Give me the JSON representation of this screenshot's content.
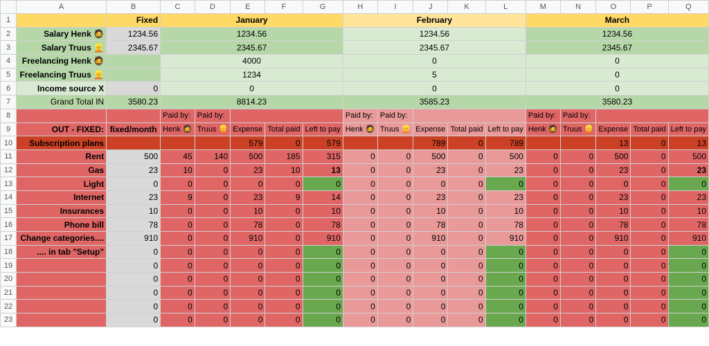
{
  "colHeaders": [
    "",
    "A",
    "B",
    "C",
    "D",
    "E",
    "F",
    "G",
    "H",
    "I",
    "J",
    "K",
    "L",
    "M",
    "N",
    "O",
    "P",
    "Q"
  ],
  "row1": {
    "fixed": "Fixed",
    "months": [
      "January",
      "February",
      "March"
    ]
  },
  "income": [
    {
      "label": "Salary Henk 🧔",
      "fixed": "1234.56",
      "months": [
        "1234.56",
        "1234.56",
        "1234.56"
      ]
    },
    {
      "label": "Salary Truus 👱",
      "fixed": "2345.67",
      "months": [
        "2345.67",
        "2345.67",
        "2345.67"
      ]
    },
    {
      "label": "Freelancing Henk 🧔",
      "fixed": "",
      "months": [
        "4000",
        "0",
        "0"
      ]
    },
    {
      "label": "Freelancing Truus 👱",
      "fixed": "",
      "months": [
        "1234",
        "5",
        "0"
      ]
    },
    {
      "label": "Income source X",
      "fixed": "0",
      "months": [
        "0",
        "0",
        "0"
      ]
    }
  ],
  "grandTotal": {
    "label": "Grand Total IN",
    "fixed": "3580.23",
    "months": [
      "8814.23",
      "3585.23",
      "3580.23"
    ]
  },
  "row8": {
    "paidBy": "Paid by:"
  },
  "row9": {
    "label": "OUT - FIXED:",
    "fixed": "fixed/month",
    "henk": "Henk 🧔",
    "truus": "Truus 👱",
    "expense": "Expense",
    "totalPaid": "Total paid",
    "leftToPay": "Left to pay"
  },
  "subscription": {
    "label": "Subscription plans",
    "months": [
      [
        "579",
        "0",
        "579"
      ],
      [
        "789",
        "0",
        "789"
      ],
      [
        "13",
        "0",
        "13"
      ]
    ]
  },
  "expenses": [
    {
      "label": "Rent",
      "fixed": "500",
      "m": [
        [
          "45",
          "140",
          "500",
          "185",
          "315"
        ],
        [
          "0",
          "0",
          "500",
          "0",
          "500"
        ],
        [
          "0",
          "0",
          "500",
          "0",
          "500"
        ]
      ]
    },
    {
      "label": "Gas",
      "fixed": "23",
      "m": [
        [
          "10",
          "0",
          "23",
          "10",
          "13"
        ],
        [
          "0",
          "0",
          "23",
          "0",
          "23"
        ],
        [
          "0",
          "0",
          "23",
          "0",
          "23"
        ]
      ]
    },
    {
      "label": "Light",
      "fixed": "0",
      "m": [
        [
          "0",
          "0",
          "0",
          "0",
          "0"
        ],
        [
          "0",
          "0",
          "0",
          "0",
          "0"
        ],
        [
          "0",
          "0",
          "0",
          "0",
          "0"
        ]
      ]
    },
    {
      "label": "Internet",
      "fixed": "23",
      "m": [
        [
          "9",
          "0",
          "23",
          "9",
          "14"
        ],
        [
          "0",
          "0",
          "23",
          "0",
          "23"
        ],
        [
          "0",
          "0",
          "23",
          "0",
          "23"
        ]
      ]
    },
    {
      "label": "Insurances",
      "fixed": "10",
      "m": [
        [
          "0",
          "0",
          "10",
          "0",
          "10"
        ],
        [
          "0",
          "0",
          "10",
          "0",
          "10"
        ],
        [
          "0",
          "0",
          "10",
          "0",
          "10"
        ]
      ]
    },
    {
      "label": "Phone bill",
      "fixed": "78",
      "m": [
        [
          "0",
          "0",
          "78",
          "0",
          "78"
        ],
        [
          "0",
          "0",
          "78",
          "0",
          "78"
        ],
        [
          "0",
          "0",
          "78",
          "0",
          "78"
        ]
      ]
    },
    {
      "label": "Change categories....",
      "fixed": "910",
      "m": [
        [
          "0",
          "0",
          "910",
          "0",
          "910"
        ],
        [
          "0",
          "0",
          "910",
          "0",
          "910"
        ],
        [
          "0",
          "0",
          "910",
          "0",
          "910"
        ]
      ]
    },
    {
      "label": ".... in tab \"Setup\"",
      "fixed": "0",
      "m": [
        [
          "0",
          "0",
          "0",
          "0",
          "0"
        ],
        [
          "0",
          "0",
          "0",
          "0",
          "0"
        ],
        [
          "0",
          "0",
          "0",
          "0",
          "0"
        ]
      ]
    },
    {
      "label": "",
      "fixed": "0",
      "m": [
        [
          "0",
          "0",
          "0",
          "0",
          "0"
        ],
        [
          "0",
          "0",
          "0",
          "0",
          "0"
        ],
        [
          "0",
          "0",
          "0",
          "0",
          "0"
        ]
      ]
    },
    {
      "label": "",
      "fixed": "0",
      "m": [
        [
          "0",
          "0",
          "0",
          "0",
          "0"
        ],
        [
          "0",
          "0",
          "0",
          "0",
          "0"
        ],
        [
          "0",
          "0",
          "0",
          "0",
          "0"
        ]
      ]
    },
    {
      "label": "",
      "fixed": "0",
      "m": [
        [
          "0",
          "0",
          "0",
          "0",
          "0"
        ],
        [
          "0",
          "0",
          "0",
          "0",
          "0"
        ],
        [
          "0",
          "0",
          "0",
          "0",
          "0"
        ]
      ]
    },
    {
      "label": "",
      "fixed": "0",
      "m": [
        [
          "0",
          "0",
          "0",
          "0",
          "0"
        ],
        [
          "0",
          "0",
          "0",
          "0",
          "0"
        ],
        [
          "0",
          "0",
          "0",
          "0",
          "0"
        ]
      ]
    },
    {
      "label": "",
      "fixed": "0",
      "m": [
        [
          "0",
          "0",
          "0",
          "0",
          "0"
        ],
        [
          "0",
          "0",
          "0",
          "0",
          "0"
        ],
        [
          "0",
          "0",
          "0",
          "0",
          "0"
        ]
      ]
    }
  ],
  "colors": {
    "header_yellow": "#ffd966",
    "feb_yellow": "#ffe599",
    "income_green": "#b6d7a8",
    "income_light_green": "#d9ead3",
    "expense_red": "#e06666",
    "expense_pink": "#ea9999",
    "paid_green": "#6aa84f"
  }
}
